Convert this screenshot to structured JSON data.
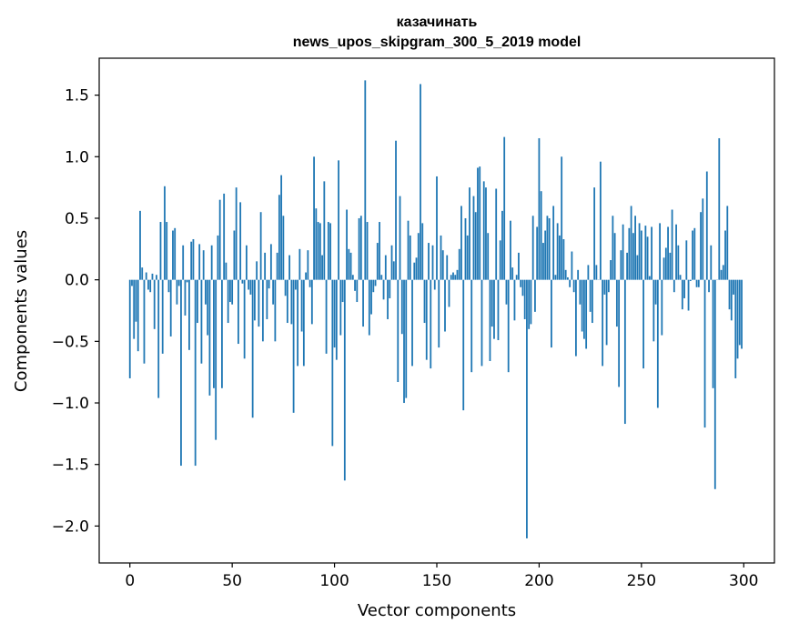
{
  "chart_data": {
    "type": "bar",
    "title": [
      "казачинать",
      "news_upos_skipgram_300_5_2019 model"
    ],
    "xlabel": "Vector components",
    "ylabel": "Components values",
    "xlim": [
      -15,
      315
    ],
    "ylim": [
      -2.3,
      1.8
    ],
    "xticks": [
      0,
      50,
      100,
      150,
      200,
      250,
      300
    ],
    "yticks": [
      -2.0,
      -1.5,
      -1.0,
      -0.5,
      0.0,
      0.5,
      1.0,
      1.5
    ],
    "ytick_labels": [
      "−2.0",
      "−1.5",
      "−1.0",
      "−0.5",
      "0.0",
      "0.5",
      "1.0",
      "1.5"
    ],
    "bar_color": "#1f77b4",
    "grid": false,
    "values": [
      -0.8,
      -0.05,
      -0.48,
      -0.34,
      -0.58,
      0.56,
      0.1,
      -0.68,
      0.06,
      -0.08,
      -0.1,
      0.05,
      -0.4,
      0.04,
      -0.96,
      0.47,
      -0.6,
      0.76,
      0.47,
      -0.1,
      -0.46,
      0.4,
      0.42,
      -0.2,
      -0.05,
      -1.51,
      0.28,
      -0.29,
      -0.02,
      -0.57,
      0.31,
      0.33,
      -1.51,
      -0.35,
      0.29,
      -0.68,
      0.24,
      -0.2,
      -0.45,
      -0.94,
      0.28,
      -0.88,
      -1.3,
      0.36,
      0.65,
      -0.88,
      0.7,
      0.14,
      -0.35,
      -0.18,
      -0.2,
      0.4,
      0.75,
      -0.52,
      0.63,
      -0.03,
      -0.64,
      0.28,
      -0.08,
      -0.12,
      -1.12,
      -0.33,
      0.15,
      -0.38,
      0.55,
      -0.5,
      0.22,
      -0.32,
      -0.07,
      0.29,
      -0.2,
      -0.5,
      0.22,
      0.69,
      0.85,
      0.52,
      -0.13,
      -0.35,
      0.2,
      -0.36,
      -1.08,
      -0.08,
      -0.7,
      0.25,
      -0.42,
      -0.7,
      0.06,
      0.24,
      -0.06,
      -0.36,
      1.0,
      0.58,
      0.47,
      0.46,
      0.2,
      0.8,
      -0.6,
      0.47,
      0.46,
      -1.35,
      -0.55,
      -0.65,
      0.97,
      -0.45,
      -0.18,
      -1.63,
      0.57,
      0.25,
      0.22,
      0.04,
      -0.09,
      -0.18,
      0.5,
      0.52,
      -0.38,
      1.62,
      0.47,
      -0.45,
      -0.28,
      -0.1,
      -0.05,
      0.3,
      0.47,
      0.04,
      -0.16,
      0.2,
      -0.32,
      -0.15,
      0.28,
      0.15,
      1.13,
      -0.83,
      0.68,
      -0.44,
      -1.0,
      -0.96,
      0.48,
      0.36,
      -0.7,
      0.14,
      0.18,
      0.38,
      1.59,
      0.46,
      -0.35,
      -0.65,
      0.3,
      -0.72,
      0.28,
      -0.08,
      0.84,
      -0.55,
      0.36,
      0.24,
      -0.42,
      0.2,
      -0.22,
      0.04,
      0.06,
      0.04,
      0.08,
      0.25,
      0.6,
      -1.06,
      0.5,
      0.36,
      0.75,
      -0.75,
      0.68,
      0.55,
      0.91,
      0.92,
      -0.7,
      0.8,
      0.75,
      0.38,
      -0.66,
      -0.38,
      -0.48,
      0.74,
      -0.49,
      0.32,
      0.56,
      1.16,
      -0.2,
      -0.75,
      0.48,
      0.1,
      -0.33,
      0.04,
      0.22,
      -0.06,
      -0.13,
      -0.32,
      -2.1,
      -0.4,
      -0.36,
      0.52,
      -0.26,
      0.43,
      1.15,
      0.72,
      0.3,
      0.4,
      0.52,
      0.5,
      -0.55,
      0.6,
      0.04,
      0.46,
      0.36,
      1.0,
      0.33,
      0.08,
      0.02,
      -0.06,
      0.23,
      -0.1,
      -0.62,
      0.08,
      -0.2,
      -0.42,
      -0.48,
      -0.56,
      0.12,
      -0.26,
      -0.35,
      0.75,
      0.12,
      0.0,
      0.96,
      -0.7,
      -0.12,
      -0.53,
      -0.1,
      0.16,
      0.52,
      0.38,
      -0.38,
      -0.87,
      0.24,
      0.45,
      -1.17,
      0.22,
      0.42,
      0.6,
      0.38,
      0.52,
      0.2,
      0.46,
      0.4,
      -0.72,
      0.44,
      0.35,
      0.03,
      0.43,
      -0.5,
      -0.2,
      -1.04,
      0.46,
      -0.45,
      0.18,
      0.26,
      0.43,
      0.22,
      0.57,
      -0.1,
      0.45,
      0.28,
      0.04,
      -0.24,
      -0.15,
      0.32,
      -0.25,
      -0.01,
      0.4,
      0.42,
      -0.06,
      -0.06,
      0.55,
      0.66,
      -1.2,
      0.88,
      -0.1,
      0.28,
      -0.88,
      -1.7,
      0.0,
      1.15,
      0.08,
      0.12,
      0.4,
      0.6,
      -0.24,
      -0.33,
      -0.12,
      -0.8,
      -0.64,
      -0.53,
      -0.56
    ]
  }
}
